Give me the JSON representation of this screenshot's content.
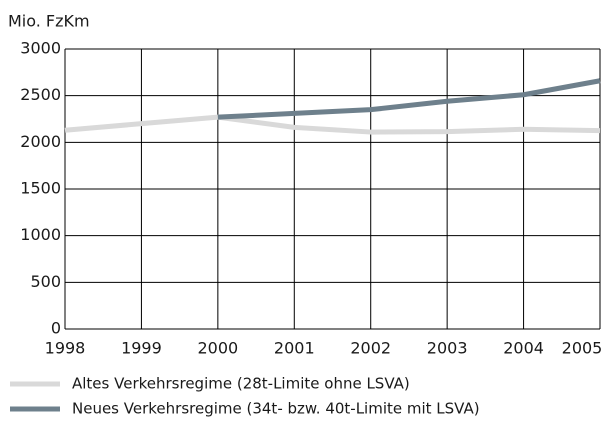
{
  "chart_data": {
    "type": "line",
    "y_label": "Mio. FzKm",
    "x": [
      1998,
      1999,
      2000,
      2001,
      2002,
      2003,
      2004,
      2005
    ],
    "series": [
      {
        "name": "Altes Verkehrsregime (28t-Limite ohne LSVA)",
        "color": "#d9d9d9",
        "values": [
          2130,
          2200,
          2270,
          2160,
          2110,
          2115,
          2140,
          2125
        ]
      },
      {
        "name": "Neues Verkehrsregime (34t- bzw. 40t-Limite mit LSVA)",
        "color": "#6e808c",
        "values": [
          null,
          null,
          2270,
          2310,
          2350,
          2440,
          2510,
          2660
        ]
      }
    ],
    "xlim": [
      1998,
      2005
    ],
    "xticks": [
      1998,
      1999,
      2000,
      2001,
      2002,
      2003,
      2004,
      2005
    ],
    "ylim": [
      0,
      3000
    ],
    "yticks": [
      0,
      500,
      1000,
      1500,
      2000,
      2500,
      3000
    ],
    "grid": true
  }
}
